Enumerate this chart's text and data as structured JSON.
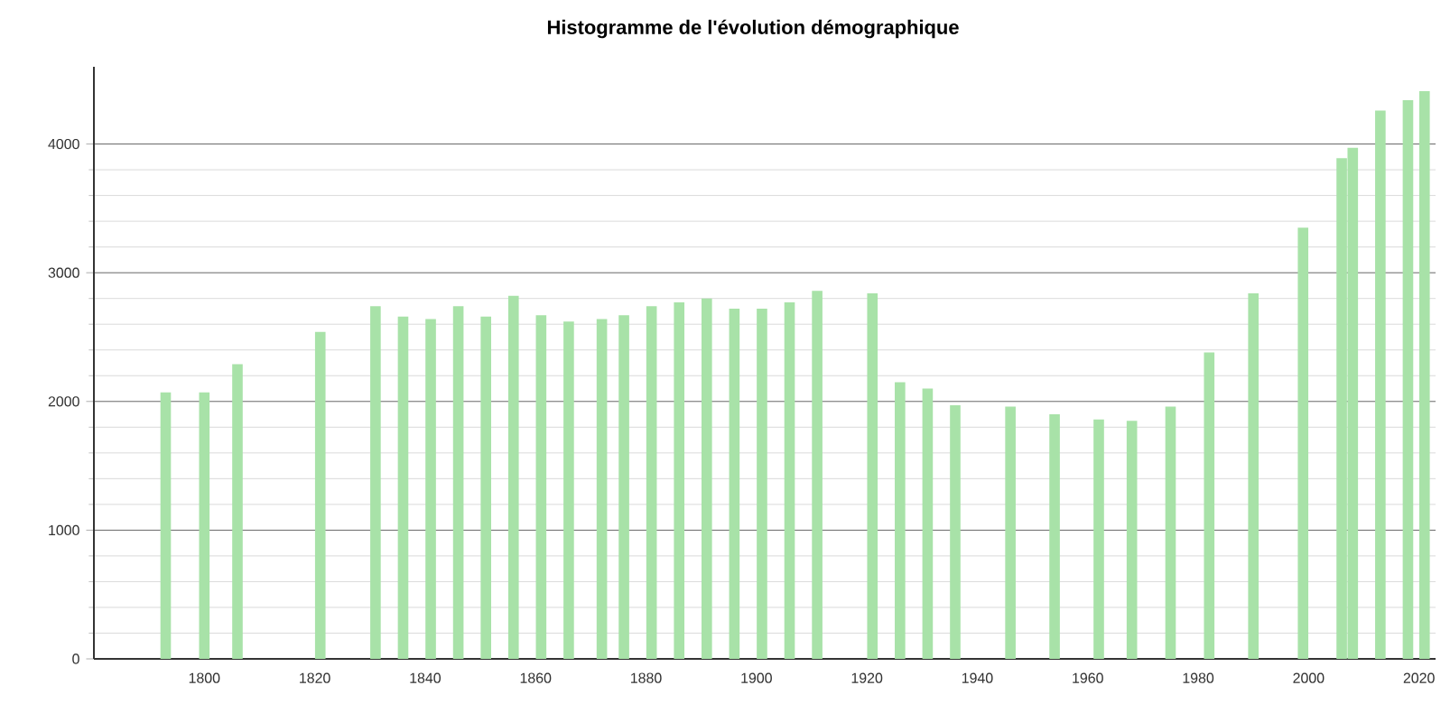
{
  "chart_data": {
    "type": "bar",
    "title": "Histogramme de l'évolution démographique",
    "x": [
      1793,
      1800,
      1806,
      1821,
      1831,
      1836,
      1841,
      1846,
      1851,
      1856,
      1861,
      1866,
      1872,
      1876,
      1881,
      1886,
      1891,
      1896,
      1901,
      1906,
      1911,
      1921,
      1926,
      1931,
      1936,
      1946,
      1954,
      1962,
      1968,
      1975,
      1982,
      1990,
      1999,
      2006,
      2008,
      2013,
      2018,
      2021
    ],
    "values": [
      2070,
      2070,
      2290,
      2540,
      2740,
      2660,
      2640,
      2740,
      2660,
      2820,
      2670,
      2620,
      2640,
      2670,
      2740,
      2770,
      2800,
      2720,
      2720,
      2770,
      2860,
      2840,
      2150,
      2100,
      1970,
      1960,
      1900,
      1860,
      1850,
      1960,
      2380,
      2840,
      3350,
      3890,
      3970,
      4260,
      4340,
      4410
    ],
    "color": "#a8e2a8",
    "xlim": [
      1780,
      2023
    ],
    "ylim": [
      0,
      4600
    ],
    "xticks": [
      1800,
      1820,
      1840,
      1860,
      1880,
      1900,
      1920,
      1940,
      1960,
      1980,
      2000,
      2020
    ],
    "yticks": [
      0,
      1000,
      2000,
      3000,
      4000
    ],
    "grid": "y"
  }
}
